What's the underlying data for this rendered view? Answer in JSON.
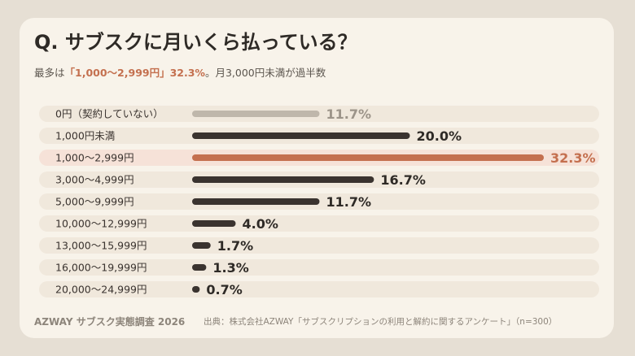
{
  "title": "Q. サブスクに月いくら払っている？",
  "subtitle": {
    "prefix": "最多は",
    "highlight": "「1,000〜2,999円」32.3%",
    "suffix": "。月3,000円未満が過半数"
  },
  "colors": {
    "background": "#e6dfd4",
    "card": "#f8f3ea",
    "track": "#f0e8dc",
    "highlight_track": "#f6e2d8",
    "bar_default": "#3a332f",
    "bar_highlight": "#c4704f",
    "bar_zero": "#bfb7ab",
    "label_text": "#3a332f",
    "value_default": "#2e2a26",
    "value_zero": "#9c9489"
  },
  "chart_data": {
    "type": "bar",
    "orientation": "horizontal",
    "categories": [
      "0円（契約していない）",
      "1,000円未満",
      "1,000〜2,999円",
      "3,000〜4,999円",
      "5,000〜9,999円",
      "10,000〜12,999円",
      "13,000〜15,999円",
      "16,000〜19,999円",
      "20,000〜24,999円"
    ],
    "values": [
      11.7,
      20.0,
      32.3,
      16.7,
      11.7,
      4.0,
      1.7,
      1.3,
      0.7
    ],
    "value_labels": [
      "11.7%",
      "20.0%",
      "32.3%",
      "16.7%",
      "11.7%",
      "4.0%",
      "1.7%",
      "1.3%",
      "0.7%"
    ],
    "highlight_index": 2,
    "muted_index": 0,
    "xlim": [
      0,
      32.3
    ],
    "unit": "%"
  },
  "footer": {
    "brand": "AZWAY サブスク実態調査 2026",
    "source": "出典：株式会社AZWAY「サブスクリプションの利用と解約に関するアンケート」（n=300）"
  }
}
